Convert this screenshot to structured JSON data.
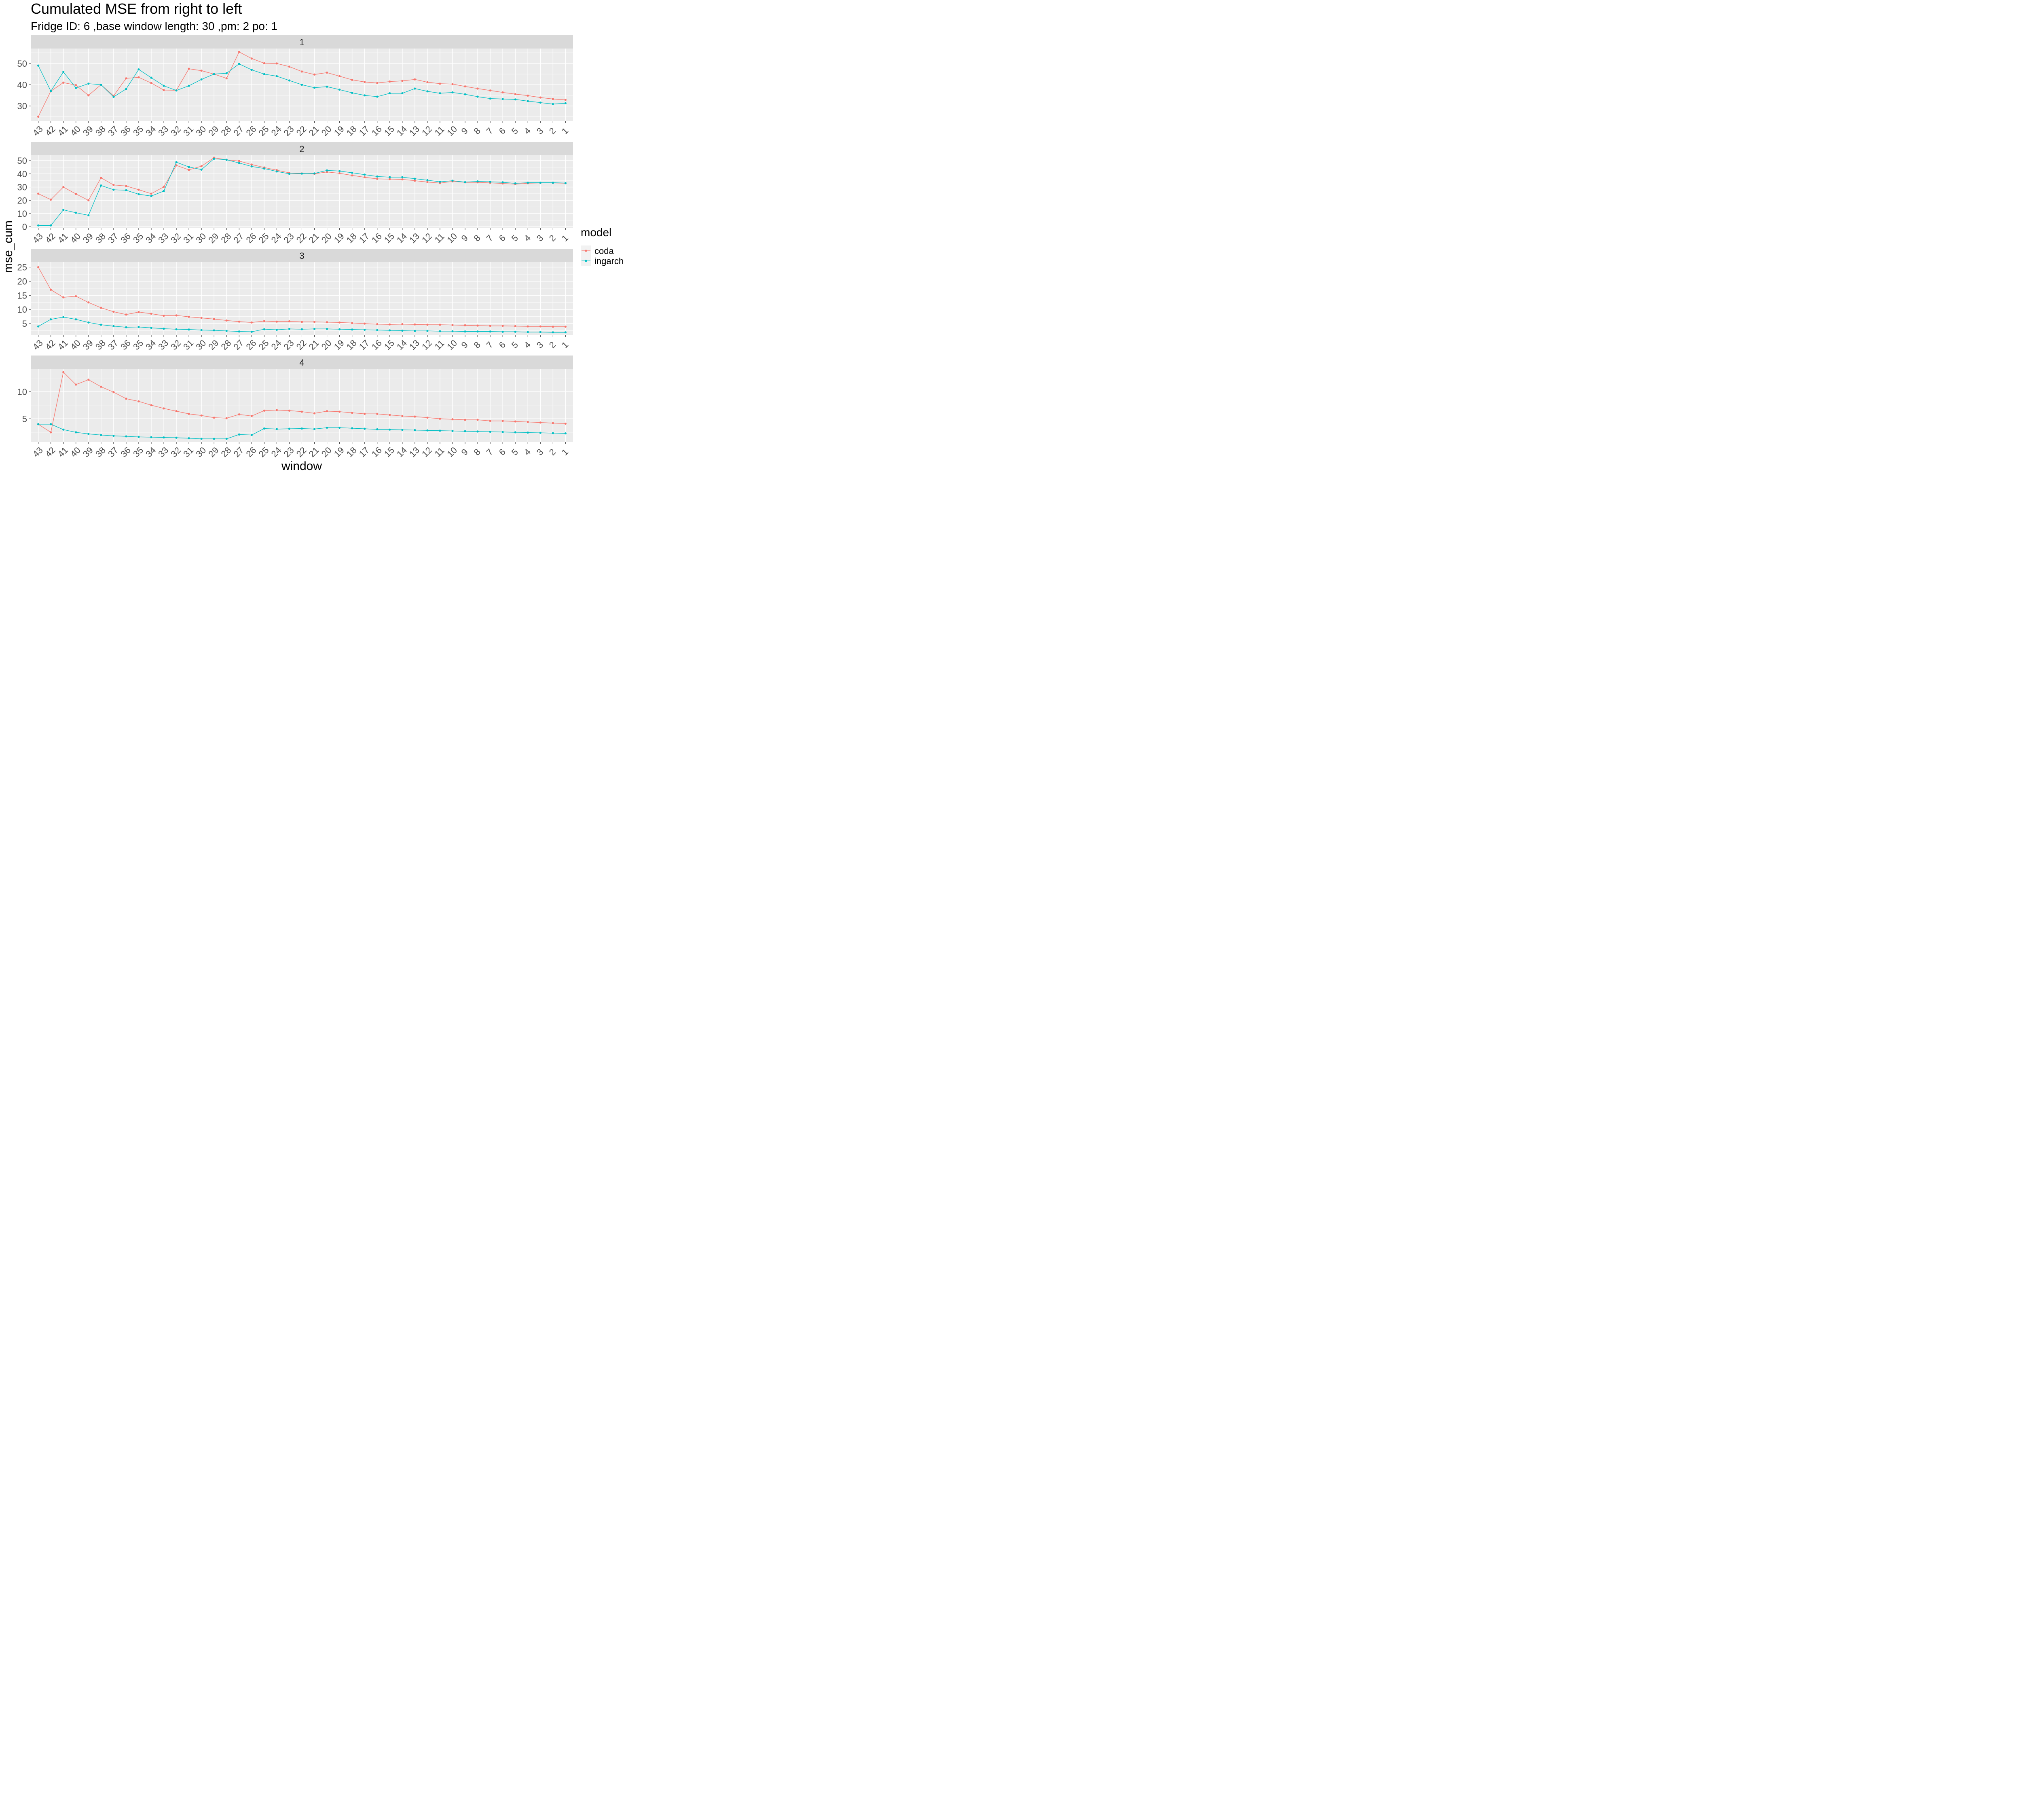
{
  "chart_data": {
    "type": "line",
    "title": "Cumulated MSE from right to left",
    "subtitle": "Fridge ID: 6 ,base window length: 30 ,pm: 2 po: 1",
    "xlabel": "window",
    "ylabel": "mse_cum",
    "legend": {
      "title": "model",
      "position": "right"
    },
    "grid": true,
    "categories": [
      "43",
      "42",
      "41",
      "40",
      "39",
      "38",
      "37",
      "36",
      "35",
      "34",
      "33",
      "32",
      "31",
      "30",
      "29",
      "28",
      "27",
      "26",
      "25",
      "24",
      "23",
      "22",
      "21",
      "20",
      "19",
      "18",
      "17",
      "16",
      "15",
      "14",
      "13",
      "12",
      "11",
      "10",
      "9",
      "8",
      "7",
      "6",
      "5",
      "4",
      "3",
      "2",
      "1"
    ],
    "colors": {
      "coda": "#F8766D",
      "ingarch": "#00BFC4"
    },
    "facets": [
      {
        "label": "1",
        "ylim": [
          23,
          57
        ],
        "yticks": [
          30,
          40,
          50
        ],
        "series": [
          {
            "name": "coda",
            "values": [
              25.0,
              37.0,
              41.0,
              39.8,
              35.0,
              40.0,
              34.8,
              43.0,
              43.5,
              40.8,
              37.5,
              37.4,
              47.5,
              46.6,
              45.0,
              43.0,
              55.4,
              52.3,
              50.1,
              50.0,
              48.5,
              46.2,
              44.8,
              45.7,
              44.0,
              42.3,
              41.3,
              40.8,
              41.5,
              41.8,
              42.5,
              41.2,
              40.5,
              40.3,
              39.2,
              38.2,
              37.3,
              36.4,
              35.6,
              34.9,
              34.0,
              33.3,
              32.9
            ]
          },
          {
            "name": "ingarch",
            "values": [
              49.0,
              37.0,
              46.0,
              38.5,
              40.5,
              40.0,
              34.3,
              38.0,
              47.2,
              43.3,
              39.5,
              37.3,
              39.5,
              42.5,
              45.0,
              45.4,
              49.8,
              47.0,
              45.0,
              44.0,
              42.0,
              40.0,
              38.6,
              39.1,
              37.7,
              36.2,
              35.0,
              34.4,
              36.0,
              36.0,
              38.2,
              36.9,
              36.0,
              36.4,
              35.5,
              34.4,
              33.5,
              33.3,
              33.1,
              32.3,
              31.6,
              30.9,
              31.3
            ]
          }
        ]
      },
      {
        "label": "2",
        "ylim": [
          -1,
          54
        ],
        "yticks": [
          0,
          10,
          20,
          30,
          40,
          50
        ],
        "series": [
          {
            "name": "coda",
            "values": [
              25.0,
              20.5,
              30.0,
              24.8,
              20.0,
              37.0,
              31.6,
              30.8,
              28.0,
              25.0,
              30.2,
              46.4,
              43.0,
              45.8,
              52.2,
              50.6,
              49.7,
              47.0,
              44.8,
              42.8,
              40.7,
              40.3,
              40.0,
              41.4,
              40.4,
              38.8,
              37.4,
              36.2,
              36.0,
              35.8,
              34.8,
              33.8,
              33.0,
              34.3,
              33.6,
              33.6,
              33.2,
              32.7,
              32.2,
              32.9,
              33.1,
              33.1,
              32.9
            ]
          },
          {
            "name": "ingarch",
            "values": [
              1.0,
              1.0,
              12.8,
              10.6,
              8.7,
              31.2,
              28.0,
              27.6,
              24.6,
              23.2,
              27.0,
              48.8,
              45.2,
              43.2,
              51.4,
              50.6,
              48.2,
              45.6,
              44.0,
              41.8,
              40.0,
              40.2,
              40.3,
              42.6,
              42.1,
              40.8,
              39.4,
              38.0,
              37.5,
              37.5,
              36.3,
              35.2,
              34.0,
              34.8,
              33.7,
              34.3,
              34.0,
              33.6,
              32.8,
              33.3,
              33.3,
              33.3,
              33.0
            ]
          }
        ]
      },
      {
        "label": "3",
        "ylim": [
          1.0,
          26.8
        ],
        "yticks": [
          5,
          10,
          15,
          20,
          25
        ],
        "series": [
          {
            "name": "coda",
            "values": [
              25.0,
              17.0,
              14.3,
              14.7,
              12.5,
              10.6,
              9.2,
              8.2,
              9.1,
              8.5,
              7.8,
              7.9,
              7.4,
              7.0,
              6.6,
              6.1,
              5.7,
              5.4,
              5.9,
              5.7,
              5.8,
              5.6,
              5.6,
              5.5,
              5.4,
              5.2,
              5.0,
              4.8,
              4.7,
              4.8,
              4.7,
              4.6,
              4.6,
              4.5,
              4.4,
              4.3,
              4.2,
              4.2,
              4.1,
              4.0,
              4.0,
              3.9,
              3.9
            ]
          },
          {
            "name": "ingarch",
            "values": [
              4.0,
              6.5,
              7.3,
              6.5,
              5.4,
              4.6,
              4.1,
              3.7,
              3.8,
              3.5,
              3.2,
              3.0,
              2.9,
              2.7,
              2.6,
              2.4,
              2.2,
              2.1,
              3.0,
              2.8,
              3.1,
              3.0,
              3.1,
              3.1,
              3.0,
              2.9,
              2.8,
              2.7,
              2.6,
              2.5,
              2.4,
              2.4,
              2.3,
              2.3,
              2.2,
              2.2,
              2.2,
              2.1,
              2.1,
              2.0,
              2.0,
              1.9,
              1.9
            ]
          }
        ]
      },
      {
        "label": "4",
        "ylim": [
          0.7,
          14.2
        ],
        "yticks": [
          5,
          10
        ],
        "series": [
          {
            "name": "coda",
            "values": [
              4.0,
              2.5,
              13.6,
              11.3,
              12.2,
              10.9,
              9.9,
              8.7,
              8.2,
              7.5,
              6.9,
              6.4,
              5.9,
              5.6,
              5.2,
              5.1,
              5.8,
              5.5,
              6.5,
              6.6,
              6.5,
              6.3,
              6.0,
              6.4,
              6.3,
              6.1,
              5.9,
              5.9,
              5.7,
              5.5,
              5.4,
              5.2,
              5.0,
              4.9,
              4.8,
              4.8,
              4.6,
              4.6,
              4.5,
              4.4,
              4.3,
              4.2,
              4.1
            ]
          },
          {
            "name": "ingarch",
            "values": [
              4.0,
              4.0,
              3.0,
              2.5,
              2.2,
              2.0,
              1.85,
              1.75,
              1.65,
              1.6,
              1.55,
              1.5,
              1.4,
              1.3,
              1.3,
              1.3,
              2.1,
              2.0,
              3.2,
              3.1,
              3.15,
              3.2,
              3.1,
              3.35,
              3.35,
              3.25,
              3.15,
              3.05,
              3.0,
              2.95,
              2.9,
              2.85,
              2.8,
              2.75,
              2.7,
              2.65,
              2.6,
              2.55,
              2.5,
              2.45,
              2.4,
              2.35,
              2.3
            ]
          }
        ]
      }
    ]
  }
}
